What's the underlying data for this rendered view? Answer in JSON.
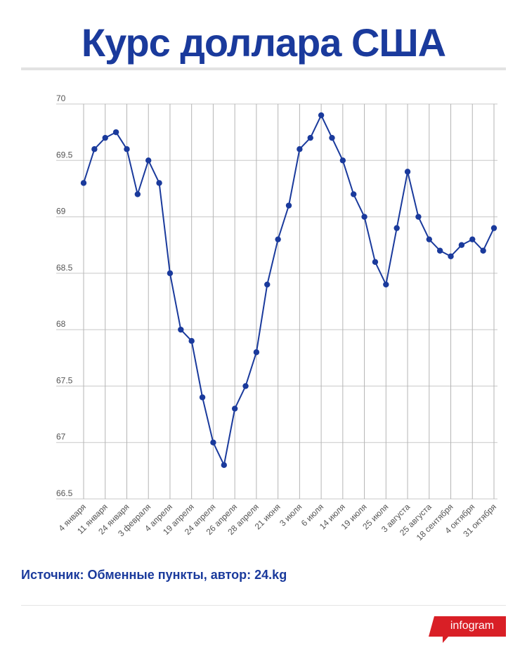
{
  "header": {
    "title": "Курс доллара США"
  },
  "chart_data": {
    "type": "line",
    "title": "Курс доллара США",
    "xlabel": "",
    "ylabel": "",
    "ylim": [
      66.5,
      70
    ],
    "yticks": [
      70,
      69.5,
      69,
      68.5,
      68,
      67.5,
      67,
      66.5
    ],
    "ytick_labels": [
      "70",
      "69.5",
      "69",
      "68.5",
      "68",
      "67.5",
      "67",
      "66.5"
    ],
    "x_tick_labels": [
      {
        "index": 0,
        "label": "4 января"
      },
      {
        "index": 2,
        "label": "11 января"
      },
      {
        "index": 4,
        "label": "24 января"
      },
      {
        "index": 6,
        "label": "3 февраля"
      },
      {
        "index": 8,
        "label": "4 апреля"
      },
      {
        "index": 10,
        "label": "19 апреля"
      },
      {
        "index": 12,
        "label": "24 апреля"
      },
      {
        "index": 14,
        "label": "26 апреля"
      },
      {
        "index": 16,
        "label": "28 апреля"
      },
      {
        "index": 18,
        "label": "21 июня"
      },
      {
        "index": 20,
        "label": "3 июля"
      },
      {
        "index": 22,
        "label": "6 июля"
      },
      {
        "index": 24,
        "label": "14 июля"
      },
      {
        "index": 26,
        "label": "19 июля"
      },
      {
        "index": 28,
        "label": "25 июля"
      },
      {
        "index": 30,
        "label": "3 августа"
      },
      {
        "index": 32,
        "label": "25 августа"
      },
      {
        "index": 34,
        "label": "18 сентября"
      },
      {
        "index": 36,
        "label": "4 октября"
      },
      {
        "index": 38,
        "label": "31 октября"
      }
    ],
    "series": [
      {
        "values": [
          69.3,
          69.6,
          69.7,
          69.75,
          69.6,
          69.2,
          69.5,
          69.3,
          68.5,
          68.0,
          67.9,
          67.4,
          67.0,
          66.8,
          67.3,
          67.5,
          67.8,
          68.4,
          68.8,
          69.1,
          69.6,
          69.7,
          69.9,
          69.7,
          69.5,
          69.2,
          69.0,
          68.6,
          68.4,
          68.9,
          69.4,
          69.0,
          68.8,
          68.7,
          68.65,
          68.75,
          68.8,
          68.7,
          68.9
        ],
        "color": "#1a3a9c"
      }
    ],
    "grid": true,
    "legend": "none"
  },
  "footer": {
    "source": "Источник: Обменные пункты, автор: 24.kg",
    "brand": "infogram",
    "brand_color": "#d91f26"
  }
}
